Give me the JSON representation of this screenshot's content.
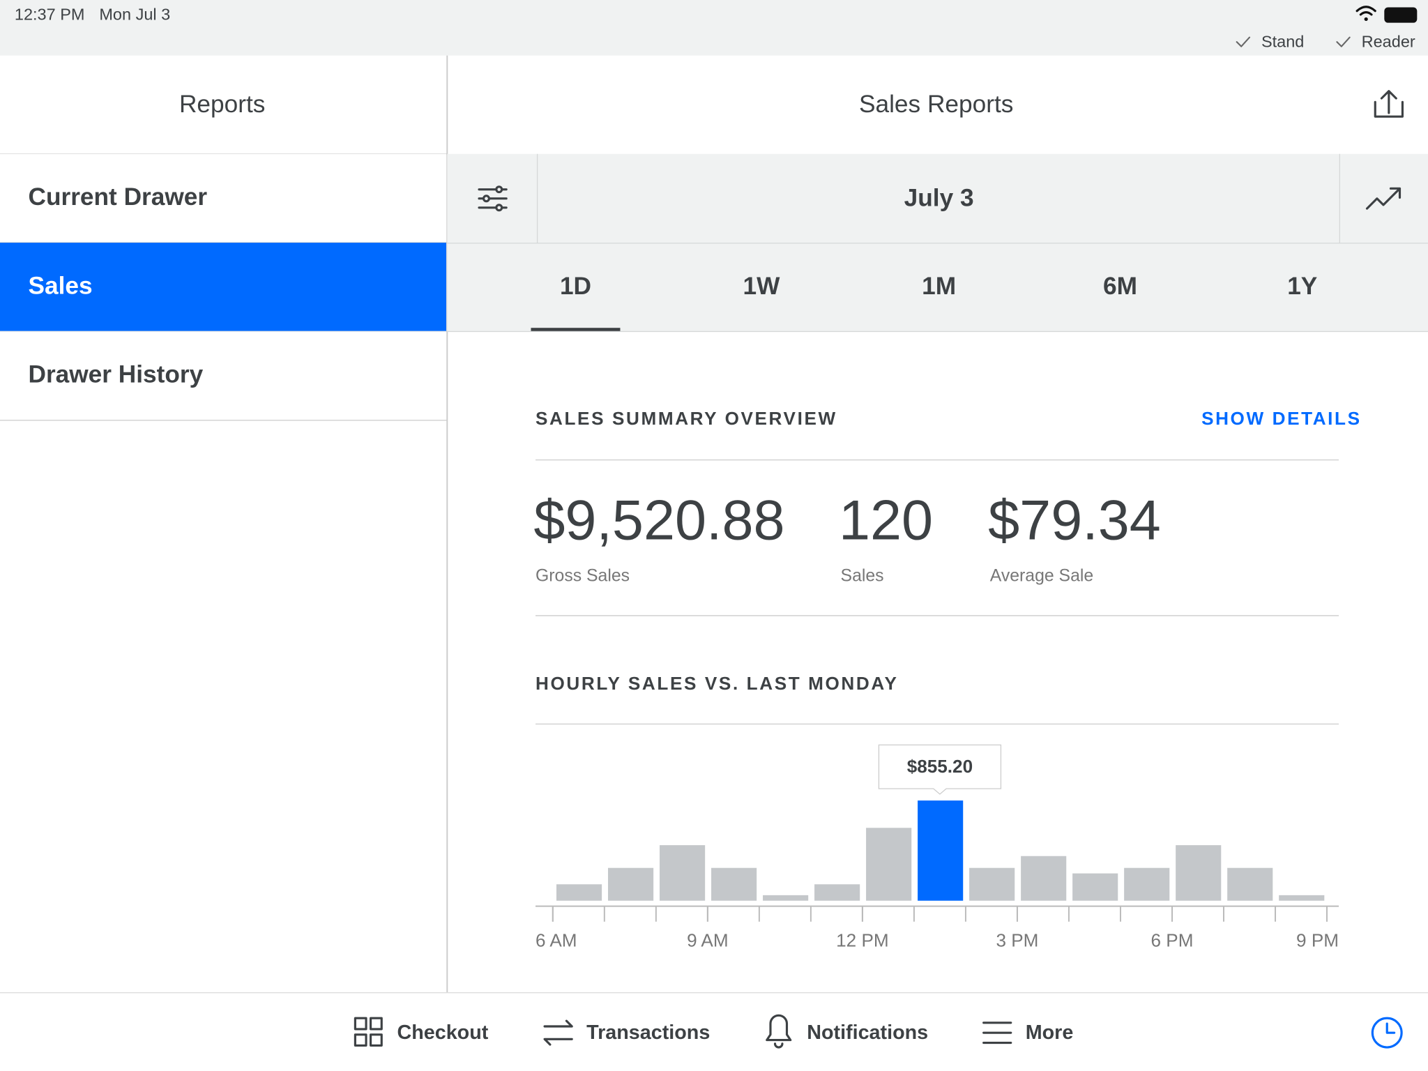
{
  "status_bar": {
    "time": "12:37 PM",
    "date": "Mon Jul 3",
    "accessories": [
      "Stand",
      "Reader"
    ]
  },
  "sidebar": {
    "title": "Reports",
    "items": [
      "Current Drawer",
      "Sales",
      "Drawer History"
    ],
    "selected": 1
  },
  "header": {
    "title": "Sales Reports",
    "date": "July 3"
  },
  "tabs": {
    "items": [
      "1D",
      "1W",
      "1M",
      "6M",
      "1Y"
    ],
    "selected": 0
  },
  "summary": {
    "title": "SALES SUMMARY OVERVIEW",
    "action": "SHOW DETAILS",
    "metrics": [
      {
        "value": "$9,520.88",
        "label": "Gross Sales"
      },
      {
        "value": "120",
        "label": "Sales"
      },
      {
        "value": "$79.34",
        "label": "Average Sale"
      }
    ]
  },
  "chart_data": {
    "type": "bar",
    "title": "HOURLY SALES VS. LAST MONDAY",
    "x": [
      6,
      7,
      8,
      9,
      10,
      11,
      12,
      13,
      14,
      15,
      16,
      17,
      18,
      19,
      20
    ],
    "values": [
      140,
      280,
      474,
      280,
      47,
      140,
      622,
      855.2,
      280,
      381,
      233,
      280,
      474,
      280,
      47
    ],
    "color": "#c4c7ca",
    "highlight_color": "#006aff",
    "highlight_index": 7,
    "highlight_label": "$855.20",
    "xlim": [
      6,
      21
    ],
    "xticks": [
      {
        "value": 6,
        "label": "6 AM"
      },
      {
        "value": 9,
        "label": "9 AM"
      },
      {
        "value": 12,
        "label": "12 PM"
      },
      {
        "value": 15,
        "label": "3 PM"
      },
      {
        "value": 18,
        "label": "6 PM"
      },
      {
        "value": 21,
        "label": "9 PM"
      }
    ],
    "minor_tick_step": 1
  },
  "nav": {
    "items": [
      "Checkout",
      "Transactions",
      "Notifications",
      "More"
    ]
  }
}
